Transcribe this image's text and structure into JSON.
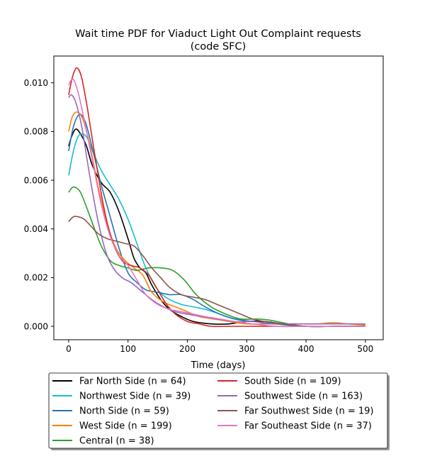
{
  "chart_data": {
    "type": "line",
    "title": "Wait time PDF for Viaduct Light Out Complaint  requests",
    "subtitle": "(code SFC)",
    "xlabel": "Time (days)",
    "ylabel": "",
    "xlim": [
      -25,
      530
    ],
    "ylim": [
      -0.00055,
      0.0111
    ],
    "x_ticks": [
      0,
      100,
      200,
      300,
      400,
      500
    ],
    "y_ticks": [
      0.0,
      0.002,
      0.004,
      0.006,
      0.008,
      0.01
    ],
    "x_tick_labels": [
      "0",
      "100",
      "200",
      "300",
      "400",
      "500"
    ],
    "y_tick_labels": [
      "0.000",
      "0.002",
      "0.004",
      "0.006",
      "0.008",
      "0.010"
    ],
    "grid": false,
    "legend_position": "below",
    "series": [
      {
        "name": "Far North Side (n = 64)",
        "color": "#000000",
        "points": [
          [
            0,
            0.0074
          ],
          [
            5,
            0.0078
          ],
          [
            12,
            0.0081
          ],
          [
            20,
            0.0079
          ],
          [
            30,
            0.0074
          ],
          [
            40,
            0.0066
          ],
          [
            55,
            0.0059
          ],
          [
            70,
            0.0055
          ],
          [
            85,
            0.0047
          ],
          [
            100,
            0.0036
          ],
          [
            110,
            0.0028
          ],
          [
            120,
            0.0024
          ],
          [
            130,
            0.0022
          ],
          [
            140,
            0.0017
          ],
          [
            155,
            0.0011
          ],
          [
            170,
            0.0007
          ],
          [
            190,
            0.0004
          ],
          [
            210,
            0.0002
          ],
          [
            240,
            0.0001
          ],
          [
            270,
            0.0001
          ],
          [
            300,
            0.0002
          ],
          [
            330,
            0.0002
          ],
          [
            360,
            0.0001
          ],
          [
            400,
            0.0
          ],
          [
            450,
            0.0
          ],
          [
            500,
            0.0
          ]
        ]
      },
      {
        "name": "Northwest Side (n = 39)",
        "color": "#17becf",
        "points": [
          [
            0,
            0.0062
          ],
          [
            8,
            0.0072
          ],
          [
            16,
            0.0078
          ],
          [
            24,
            0.0079
          ],
          [
            32,
            0.0077
          ],
          [
            42,
            0.0071
          ],
          [
            55,
            0.0064
          ],
          [
            70,
            0.0058
          ],
          [
            85,
            0.0052
          ],
          [
            100,
            0.0044
          ],
          [
            115,
            0.0034
          ],
          [
            130,
            0.0024
          ],
          [
            150,
            0.0015
          ],
          [
            170,
            0.0011
          ],
          [
            190,
            0.0009
          ],
          [
            210,
            0.0008
          ],
          [
            230,
            0.0007
          ],
          [
            255,
            0.0005
          ],
          [
            280,
            0.0003
          ],
          [
            310,
            0.0002
          ],
          [
            350,
            0.0001
          ],
          [
            400,
            0.0
          ],
          [
            450,
            0.0
          ],
          [
            500,
            0.0
          ]
        ]
      },
      {
        "name": "North Side (n = 59)",
        "color": "#1f77b4",
        "points": [
          [
            0,
            0.0072
          ],
          [
            8,
            0.0082
          ],
          [
            18,
            0.0087
          ],
          [
            28,
            0.0084
          ],
          [
            40,
            0.0073
          ],
          [
            55,
            0.0058
          ],
          [
            70,
            0.0045
          ],
          [
            85,
            0.0032
          ],
          [
            100,
            0.0022
          ],
          [
            115,
            0.0018
          ],
          [
            130,
            0.0015
          ],
          [
            150,
            0.0014
          ],
          [
            170,
            0.0013
          ],
          [
            190,
            0.0013
          ],
          [
            210,
            0.0011
          ],
          [
            230,
            0.0008
          ],
          [
            255,
            0.0005
          ],
          [
            280,
            0.0003
          ],
          [
            310,
            0.0002
          ],
          [
            350,
            0.0001
          ],
          [
            400,
            0.0
          ],
          [
            450,
            0.0
          ],
          [
            500,
            0.0
          ]
        ]
      },
      {
        "name": "West Side (n = 199)",
        "color": "#ff7f0e",
        "points": [
          [
            0,
            0.008
          ],
          [
            6,
            0.0086
          ],
          [
            14,
            0.0088
          ],
          [
            24,
            0.0085
          ],
          [
            36,
            0.0074
          ],
          [
            50,
            0.0057
          ],
          [
            65,
            0.0042
          ],
          [
            80,
            0.0032
          ],
          [
            95,
            0.0027
          ],
          [
            110,
            0.0024
          ],
          [
            125,
            0.0021
          ],
          [
            140,
            0.0014
          ],
          [
            160,
            0.001
          ],
          [
            180,
            0.0008
          ],
          [
            200,
            0.0006
          ],
          [
            220,
            0.0004
          ],
          [
            245,
            0.0003
          ],
          [
            270,
            0.0002
          ],
          [
            300,
            0.0001
          ],
          [
            340,
            0.0001
          ],
          [
            380,
            0.0001
          ],
          [
            420,
            0.0001
          ],
          [
            445,
            0.00015
          ],
          [
            470,
            0.0001
          ],
          [
            500,
            5e-05
          ]
        ]
      },
      {
        "name": "Central (n = 38)",
        "color": "#2ca02c",
        "points": [
          [
            0,
            0.0055
          ],
          [
            6,
            0.0057
          ],
          [
            12,
            0.0057
          ],
          [
            20,
            0.0055
          ],
          [
            30,
            0.0049
          ],
          [
            42,
            0.0041
          ],
          [
            55,
            0.0033
          ],
          [
            70,
            0.0027
          ],
          [
            85,
            0.0025
          ],
          [
            100,
            0.0024
          ],
          [
            115,
            0.0023
          ],
          [
            135,
            0.0024
          ],
          [
            155,
            0.0024
          ],
          [
            175,
            0.0023
          ],
          [
            195,
            0.0019
          ],
          [
            215,
            0.0013
          ],
          [
            240,
            0.0008
          ],
          [
            265,
            0.0005
          ],
          [
            290,
            0.0003
          ],
          [
            320,
            0.0003
          ],
          [
            340,
            0.00025
          ],
          [
            370,
            0.0001
          ],
          [
            400,
            0.0
          ],
          [
            450,
            0.0
          ],
          [
            500,
            0.0
          ]
        ]
      },
      {
        "name": "South Side (n = 109)",
        "color": "#d62728",
        "points": [
          [
            0,
            0.0095
          ],
          [
            5,
            0.0101
          ],
          [
            10,
            0.0105
          ],
          [
            15,
            0.0106
          ],
          [
            22,
            0.0102
          ],
          [
            32,
            0.0089
          ],
          [
            45,
            0.0069
          ],
          [
            60,
            0.0048
          ],
          [
            75,
            0.0034
          ],
          [
            90,
            0.0027
          ],
          [
            105,
            0.0025
          ],
          [
            120,
            0.0024
          ],
          [
            135,
            0.0021
          ],
          [
            150,
            0.0015
          ],
          [
            165,
            0.0009
          ],
          [
            180,
            0.0005
          ],
          [
            200,
            0.0002
          ],
          [
            220,
            0.0001
          ],
          [
            240,
            0.0
          ],
          [
            270,
            0.0
          ],
          [
            300,
            0.0
          ],
          [
            350,
            0.0
          ],
          [
            400,
            0.0
          ],
          [
            450,
            0.0
          ],
          [
            500,
            0.0
          ]
        ]
      },
      {
        "name": "Southwest Side (n = 163)",
        "color": "#9467bd",
        "points": [
          [
            0,
            0.0094
          ],
          [
            5,
            0.0095
          ],
          [
            12,
            0.0092
          ],
          [
            22,
            0.0082
          ],
          [
            34,
            0.0064
          ],
          [
            48,
            0.0045
          ],
          [
            62,
            0.0031
          ],
          [
            75,
            0.0024
          ],
          [
            90,
            0.002
          ],
          [
            105,
            0.0018
          ],
          [
            120,
            0.0015
          ],
          [
            140,
            0.0011
          ],
          [
            160,
            0.0008
          ],
          [
            180,
            0.0006
          ],
          [
            200,
            0.0005
          ],
          [
            225,
            0.0004
          ],
          [
            250,
            0.0003
          ],
          [
            280,
            0.0002
          ],
          [
            310,
            0.0002
          ],
          [
            340,
            0.0001
          ],
          [
            380,
            0.0001
          ],
          [
            420,
            0.0001
          ],
          [
            460,
            0.0001
          ],
          [
            500,
            0.0001
          ]
        ]
      },
      {
        "name": "Far Southwest Side (n = 19)",
        "color": "#8c564b",
        "points": [
          [
            0,
            0.0043
          ],
          [
            8,
            0.0045
          ],
          [
            16,
            0.0045
          ],
          [
            26,
            0.0044
          ],
          [
            38,
            0.0041
          ],
          [
            50,
            0.0038
          ],
          [
            65,
            0.0036
          ],
          [
            80,
            0.0035
          ],
          [
            95,
            0.0034
          ],
          [
            110,
            0.0033
          ],
          [
            125,
            0.0029
          ],
          [
            140,
            0.0024
          ],
          [
            155,
            0.002
          ],
          [
            170,
            0.0016
          ],
          [
            190,
            0.0013
          ],
          [
            210,
            0.0012
          ],
          [
            230,
            0.0011
          ],
          [
            250,
            0.0009
          ],
          [
            270,
            0.0007
          ],
          [
            290,
            0.0005
          ],
          [
            310,
            0.0003
          ],
          [
            330,
            0.0002
          ],
          [
            360,
            0.0001
          ],
          [
            400,
            0.0
          ],
          [
            450,
            0.0
          ],
          [
            500,
            0.0
          ]
        ]
      },
      {
        "name": "Far Southeast Side (n = 37)",
        "color": "#e377c2",
        "points": [
          [
            0,
            0.0099
          ],
          [
            4,
            0.0101
          ],
          [
            9,
            0.0101
          ],
          [
            16,
            0.0096
          ],
          [
            26,
            0.0085
          ],
          [
            40,
            0.0068
          ],
          [
            55,
            0.005
          ],
          [
            70,
            0.0037
          ],
          [
            85,
            0.0029
          ],
          [
            100,
            0.0025
          ],
          [
            115,
            0.0019
          ],
          [
            130,
            0.0013
          ],
          [
            150,
            0.0009
          ],
          [
            170,
            0.0007
          ],
          [
            190,
            0.0006
          ],
          [
            210,
            0.0005
          ],
          [
            230,
            0.0004
          ],
          [
            255,
            0.0003
          ],
          [
            280,
            0.0002
          ],
          [
            310,
            0.0001
          ],
          [
            350,
            0.0
          ],
          [
            400,
            0.0
          ],
          [
            450,
            0.0
          ],
          [
            500,
            0.0
          ]
        ]
      }
    ]
  },
  "legend": {
    "columns": [
      [
        "Far North Side (n = 64)",
        "Northwest Side (n = 39)",
        "North Side (n = 59)",
        "West Side (n = 199)",
        "Central (n = 38)"
      ],
      [
        "South Side (n = 109)",
        "Southwest Side (n = 163)",
        "Far Southwest Side (n = 19)",
        "Far Southeast Side (n = 37)"
      ]
    ]
  }
}
